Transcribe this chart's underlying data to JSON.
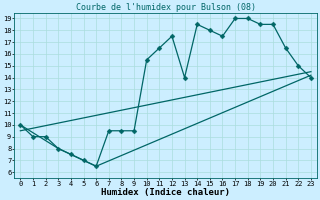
{
  "title": "Courbe de l'humidex pour Bulson (08)",
  "xlabel": "Humidex (Indice chaleur)",
  "bg_color": "#cceeff",
  "grid_color": "#aadddd",
  "line_color": "#006666",
  "line1_x": [
    0,
    1,
    2,
    3,
    4,
    5,
    6,
    7,
    8,
    9,
    10,
    11,
    12,
    13,
    14,
    15,
    16,
    17,
    18,
    19,
    20,
    21,
    22,
    23
  ],
  "line1_y": [
    10,
    9,
    9,
    8,
    7.5,
    7,
    6.5,
    9.5,
    9.5,
    9.5,
    15.5,
    16.5,
    17.5,
    14,
    18.5,
    18,
    17.5,
    19,
    19,
    18.5,
    18.5,
    16.5,
    15,
    14
  ],
  "line2_x": [
    0,
    3,
    6,
    23
  ],
  "line2_y": [
    10,
    8,
    6.5,
    14.2
  ],
  "line3_x": [
    0,
    23
  ],
  "line3_y": [
    9.5,
    14.5
  ],
  "xlim": [
    -0.5,
    23.5
  ],
  "ylim": [
    5.5,
    19.5
  ],
  "yticks": [
    6,
    7,
    8,
    9,
    10,
    11,
    12,
    13,
    14,
    15,
    16,
    17,
    18,
    19
  ],
  "xticks": [
    0,
    1,
    2,
    3,
    4,
    5,
    6,
    7,
    8,
    9,
    10,
    11,
    12,
    13,
    14,
    15,
    16,
    17,
    18,
    19,
    20,
    21,
    22,
    23
  ],
  "markersize": 2.5,
  "linewidth": 0.9,
  "title_fontsize": 6,
  "tick_fontsize": 5,
  "xlabel_fontsize": 6.5
}
